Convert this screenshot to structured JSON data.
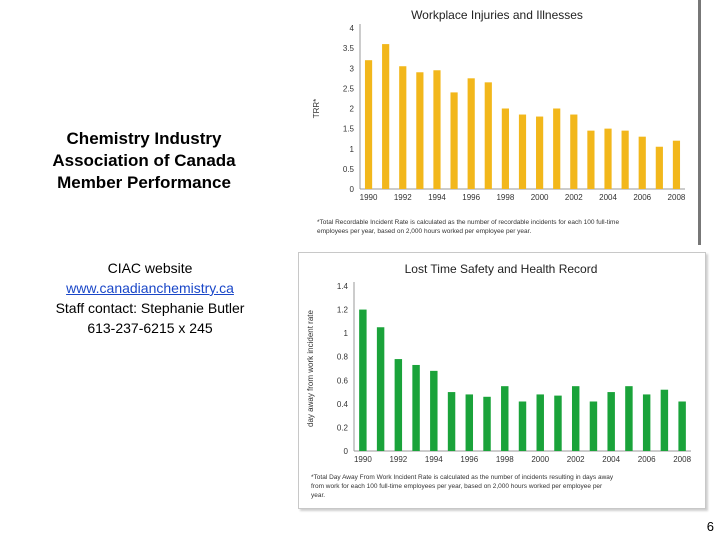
{
  "slide": {
    "title_lines": [
      "Chemistry Industry",
      "Association of Canada",
      "Member Performance"
    ],
    "contact_label": "CIAC website",
    "contact_link": "www.canadianchemistry.ca",
    "contact_staff": "Staff contact: Stephanie Butler",
    "contact_phone": "613-237-6215 x 245",
    "page_number": "6"
  },
  "chart_data": [
    {
      "type": "bar",
      "title": "Workplace Injuries and Illnesses",
      "ylabel": "TRR*",
      "xlabel": "",
      "color": "#f2b71b",
      "categories": [
        "1990",
        "1991",
        "1992",
        "1993",
        "1994",
        "1995",
        "1996",
        "1997",
        "1998",
        "1999",
        "2000",
        "2001",
        "2002",
        "2003",
        "2004",
        "2005",
        "2006",
        "2007",
        "2008"
      ],
      "values": [
        3.2,
        3.6,
        3.05,
        2.9,
        2.95,
        2.4,
        2.75,
        2.65,
        2.0,
        1.85,
        1.8,
        2.0,
        1.85,
        1.45,
        1.5,
        1.45,
        1.3,
        1.05,
        1.2
      ],
      "ylim": [
        0,
        4
      ],
      "yticks": [
        "0",
        "0.5",
        "1",
        "1.5",
        "2",
        "2.5",
        "3",
        "3.5",
        "4"
      ],
      "xtick_labels": [
        "1990",
        "1992",
        "1994",
        "1996",
        "1998",
        "2000",
        "2002",
        "2004",
        "2006",
        "2008"
      ],
      "grid": false,
      "footnote_lines": [
        "*Total Recordable Incident Rate is calculated as the number of recordable incidents for each 100 full-time",
        "employees per year, based on 2,000 hours worked per employee per year."
      ]
    },
    {
      "type": "bar",
      "title": "Lost Time Safety and Health Record",
      "ylabel": "day away from work incident rate",
      "xlabel": "",
      "color": "#1aa33a",
      "categories": [
        "1990",
        "1991",
        "1992",
        "1993",
        "1994",
        "1995",
        "1996",
        "1997",
        "1998",
        "1999",
        "2000",
        "2001",
        "2002",
        "2003",
        "2004",
        "2005",
        "2006",
        "2007",
        "2008"
      ],
      "values": [
        1.2,
        1.05,
        0.78,
        0.73,
        0.68,
        0.5,
        0.48,
        0.46,
        0.55,
        0.42,
        0.48,
        0.47,
        0.55,
        0.42,
        0.5,
        0.55,
        0.48,
        0.52,
        0.42
      ],
      "ylim": [
        0,
        1.4
      ],
      "yticks": [
        "0",
        "0.2",
        "0.4",
        "0.6",
        "0.8",
        "1",
        "1.2",
        "1.4"
      ],
      "xtick_labels": [
        "1990",
        "1992",
        "1994",
        "1996",
        "1998",
        "2000",
        "2002",
        "2004",
        "2006",
        "2008"
      ],
      "grid": false,
      "footnote_lines": [
        "*Total Day Away From Work Incident Rate is calculated as the number of incidents resulting in days away",
        "from work for each 100 full-time employees per year, based on 2,000 hours worked per employee per",
        "year."
      ]
    }
  ]
}
